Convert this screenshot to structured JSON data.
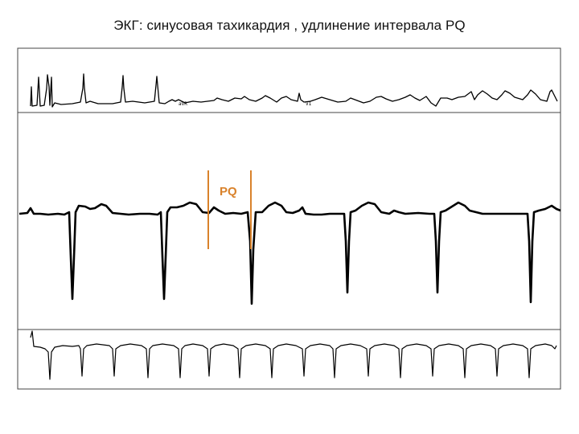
{
  "slide": {
    "title": "ЭКГ: синусовая тахикардия , удлинение интервала PQ"
  },
  "ecg": {
    "annotation": {
      "label": "PQ",
      "color": "#d9822b"
    },
    "lead_labels": {
      "avr": "aVR",
      "v1": "V1"
    },
    "trace_color": "#000000",
    "frame_color": "#444444"
  }
}
